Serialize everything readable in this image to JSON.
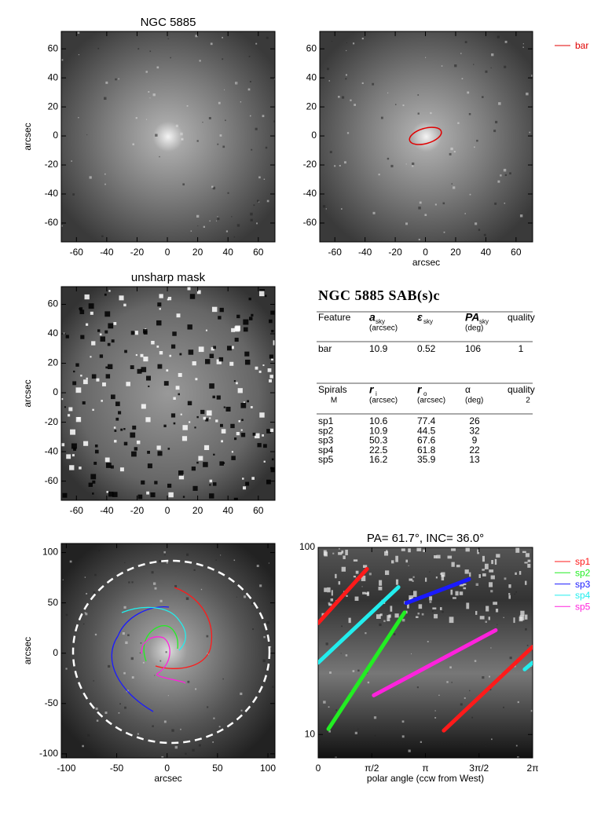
{
  "chart_data": [
    {
      "type": "image",
      "title": "NGC 5885",
      "ylabel": "arcsec",
      "xlim": [
        -70,
        71
      ],
      "ylim": [
        -73,
        72
      ],
      "xticks": [
        -60,
        -40,
        -20,
        0,
        20,
        40,
        60
      ],
      "yticks": [
        -60,
        -40,
        -20,
        0,
        20,
        40,
        60
      ]
    },
    {
      "type": "image",
      "xlabel": "arcsec",
      "xlim": [
        -70,
        71
      ],
      "ylim": [
        -73,
        72
      ],
      "xticks": [
        -60,
        -40,
        -20,
        0,
        20,
        40,
        60
      ],
      "yticks": [
        -60,
        -40,
        -20,
        0,
        20,
        40,
        60
      ],
      "series": [
        {
          "name": "bar",
          "color": "#e00000"
        }
      ]
    },
    {
      "type": "image",
      "title": "unsharp mask",
      "ylabel": "arcsec",
      "xlim": [
        -70,
        71
      ],
      "ylim": [
        -73,
        72
      ],
      "xticks": [
        -60,
        -40,
        -20,
        0,
        20,
        40,
        60
      ],
      "yticks": [
        -60,
        -40,
        -20,
        0,
        20,
        40,
        60
      ]
    },
    {
      "type": "image",
      "xlabel": "arcsec",
      "ylabel": "arcsec",
      "xlim": [
        -105,
        107
      ],
      "ylim": [
        -104,
        109
      ],
      "xticks": [
        -100,
        -50,
        0,
        50,
        100
      ],
      "yticks": [
        -100,
        -50,
        0,
        50,
        100
      ]
    },
    {
      "type": "line",
      "title": "PA= 61.7°, INC= 36.0°",
      "xlabel": "polar angle (ccw from West)",
      "log_y": true,
      "xlim": [
        0,
        6.2832
      ],
      "xticks": [
        0,
        {
          "value": 1.5708,
          "label": "π/2"
        },
        {
          "value": 3.1416,
          "label": "π"
        },
        {
          "value": 4.7124,
          "label": "3π/2"
        },
        {
          "value": 6.2832,
          "label": "2π"
        }
      ],
      "ylim": [
        7.5,
        100
      ],
      "yticks": [
        10,
        100
      ],
      "series": [
        {
          "name": "sp1",
          "color": "#ff1a1a",
          "x": [
            0,
            1.43,
            null,
            3.68,
            6.28
          ],
          "values": [
            39.4,
            76.7,
            null,
            10.5,
            29.4
          ]
        },
        {
          "name": "sp2",
          "color": "#22ee22",
          "x": [
            0.3,
            2.53
          ],
          "values": [
            10.7,
            44.9
          ]
        },
        {
          "name": "sp3",
          "color": "#1a1aff",
          "x": [
            2.58,
            4.42
          ],
          "values": [
            50.4,
            67.6
          ]
        },
        {
          "name": "sp4",
          "color": "#22eeee",
          "x": [
            0,
            2.35,
            null,
            6.05,
            6.28
          ],
          "values": [
            24.2,
            61.3,
            null,
            22.3,
            24.2
          ]
        },
        {
          "name": "sp5",
          "color": "#ff22dd",
          "x": [
            1.63,
            5.2
          ],
          "values": [
            16.2,
            36.1
          ]
        }
      ]
    }
  ],
  "table": {
    "title": "NGC 5885  SAB(s)c",
    "feature_header": [
      {
        "label": "Feature"
      },
      {
        "label": "a",
        "sub": "sky",
        "unit": "(arcsec)"
      },
      {
        "label": "ε",
        "sub": "sky"
      },
      {
        "label": "PA",
        "sub": "sky",
        "unit": "(deg)"
      },
      {
        "label": "quality"
      }
    ],
    "feature_rows": [
      [
        "bar",
        "10.9",
        "0.52",
        "106",
        "1"
      ]
    ],
    "spiral_header": [
      {
        "label": "Spirals",
        "unit": "M"
      },
      {
        "label": "r",
        "sub": "i",
        "unit": "(arcsec)"
      },
      {
        "label": "r",
        "sub": "o",
        "unit": "(arcsec)"
      },
      {
        "label": "α",
        "unit": "(deg)"
      },
      {
        "label": "quality",
        "unit": "2"
      }
    ],
    "spiral_rows": [
      [
        "sp1",
        "10.6",
        "77.4",
        "26"
      ],
      [
        "sp2",
        "10.9",
        "44.5",
        "32"
      ],
      [
        "sp3",
        "50.3",
        "67.6",
        "9"
      ],
      [
        "sp4",
        "22.5",
        "61.8",
        "22"
      ],
      [
        "sp5",
        "16.2",
        "35.9",
        "13"
      ]
    ]
  }
}
